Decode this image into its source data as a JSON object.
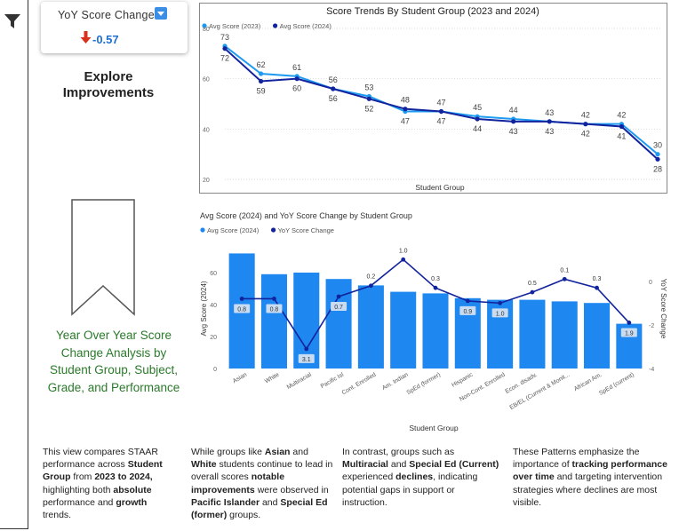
{
  "kpi": {
    "title": "YoY Score Change",
    "value": "-0.57",
    "colors": {
      "arrow": "#d9301c",
      "value": "#1f6fd1",
      "dropdown": "#3a8ee6"
    },
    "icon": "arrow-down-icon"
  },
  "explore": {
    "title": "Explore Improvements"
  },
  "side_caption": "Year Over Year Score Change Analysis by Student Group, Subject, Grade, and Performance",
  "paragraphs": {
    "p1": {
      "t1": "This view compares STAAR performance across ",
      "b1": "Student Group",
      "t2": " from ",
      "b2": "2023 to 2024,",
      "t3": " highlighting both ",
      "b3": "absolute",
      "t4": " performance and ",
      "b4": "growth",
      "t5": " trends."
    },
    "p2": {
      "t1": "While groups like ",
      "b1": "Asian",
      "t2": " and ",
      "b2": "White",
      "t3": " students continue to lead in overall scores ",
      "b3": "notable improvements",
      "t4": " were observed in ",
      "b4": "Pacific Islander",
      "t5": " and ",
      "b5": "Special Ed (former)",
      "t6": " groups."
    },
    "p3": {
      "t1": "In contrast, groups such as ",
      "b1": "Multiracial",
      "t2": " and ",
      "b2": "Special Ed (Current)",
      "t3": " experienced ",
      "b3": "declines",
      "t4": ", indicating potential gaps in support or instruction."
    },
    "p4": {
      "t1": "These Patterns emphasize the importance of ",
      "b1": "tracking performance over time",
      "t2": " and targeting intervention strategies where declines are most visible."
    }
  },
  "chart_data": [
    {
      "type": "line",
      "title": "Score Trends By Student Group (2023 and 2024)",
      "xlabel": "Student Group",
      "ylabel": "",
      "ylim": [
        20,
        80
      ],
      "yticks": [
        20,
        40,
        60,
        80
      ],
      "legend_position": "top-left",
      "x": [
        "Asian",
        "White",
        "Multiracial",
        "Pacific Isl",
        "Cont. Enrolled",
        "Am. Indian",
        "SpEd (former)",
        "Hispanic",
        "Non-Cont. Enrolled",
        "Econ. disadv.",
        "EB/EL (Current & Monit...",
        "African Am.",
        "SpEd (current)"
      ],
      "series": [
        {
          "name": "Avg Score (2023)",
          "color": "#1e9bf0",
          "values": [
            73,
            62,
            61,
            56,
            53,
            47,
            47,
            45,
            44,
            43,
            42,
            42,
            30
          ]
        },
        {
          "name": "Avg Score (2024)",
          "color": "#12239e",
          "values": [
            72,
            59,
            60,
            56,
            52,
            48,
            47,
            44,
            43,
            43,
            42,
            41,
            28
          ]
        }
      ]
    },
    {
      "type": "bar",
      "title": "Avg Score (2024) and YoY Score Change by Student Group",
      "xlabel": "Student Group",
      "ylabel": "Avg Score (2024)",
      "y2label": "YoY Score Change",
      "ylim": [
        0,
        75
      ],
      "yticks": [
        0,
        20,
        40,
        60
      ],
      "y2lim": [
        -4,
        1.5
      ],
      "y2ticks": [
        -4,
        -2,
        0
      ],
      "legend_position": "top-left",
      "categories": [
        "Asian",
        "White",
        "Multiracial",
        "Pacific Isl",
        "Cont. Enrolled",
        "Am. Indian",
        "SpEd (former)",
        "Hispanic",
        "Non-Cont. Enrolled",
        "Econ. disadv.",
        "EB/EL (Current & Monit...",
        "African Am.",
        "SpEd (current)"
      ],
      "series": [
        {
          "name": "Avg Score (2024)",
          "kind": "bar",
          "color": "#1e88f0",
          "values": [
            72,
            59,
            60,
            56,
            52,
            48,
            47,
            44,
            43,
            43,
            42,
            41,
            28
          ]
        },
        {
          "name": "YoY Score Change",
          "kind": "line",
          "color": "#12239e",
          "values": [
            -0.8,
            -0.8,
            -3.1,
            -0.7,
            -0.2,
            1.0,
            -0.3,
            -0.9,
            -1.0,
            -0.5,
            0.1,
            -0.3,
            -1.9
          ]
        }
      ],
      "yoy_labels": [
        "0.8",
        "0.8",
        "3.1",
        "0.7",
        "0.2",
        "1.0",
        "0.3",
        "0.9",
        "1.0",
        "0.5",
        "0.1",
        "0.3",
        "1.9"
      ]
    }
  ]
}
